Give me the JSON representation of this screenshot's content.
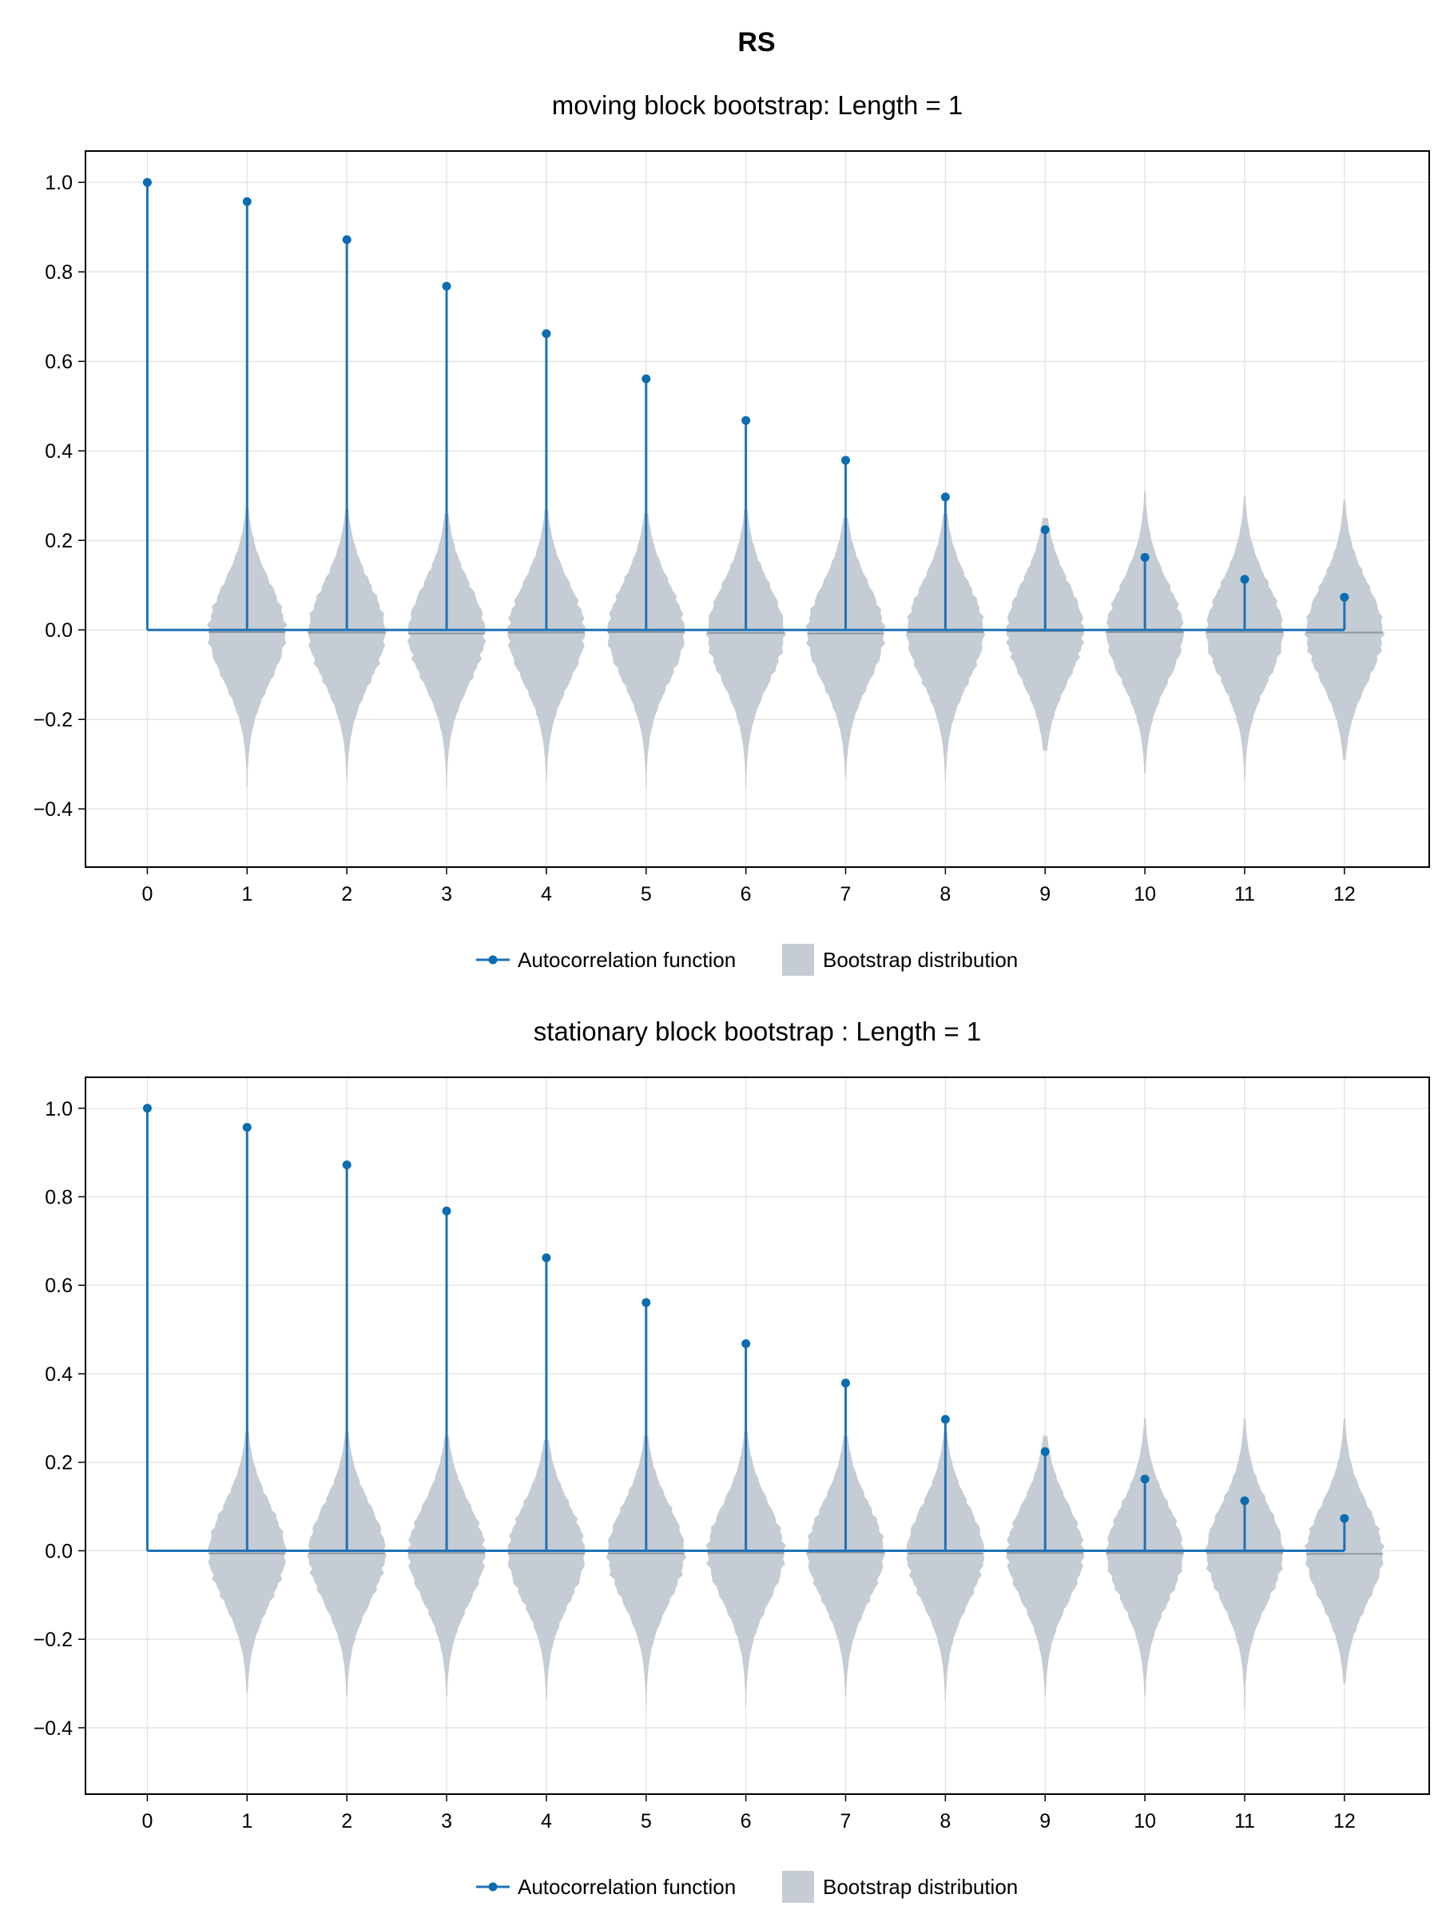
{
  "figure": {
    "title": "RS",
    "colors": {
      "acf": "#0a6cb1",
      "bootstrap": "#c5ccd3"
    },
    "legend": {
      "acf_label": "Autocorrelation function",
      "boot_label": "Bootstrap distribution",
      "placement": "bottom-center"
    }
  },
  "chart_data": [
    {
      "type": "line",
      "title": "moving block bootstrap: Length = 1",
      "xlabel": "",
      "ylabel": "",
      "x": [
        0,
        1,
        2,
        3,
        4,
        5,
        6,
        7,
        8,
        9,
        10,
        11,
        12
      ],
      "xticks": [
        0,
        1,
        2,
        3,
        4,
        5,
        6,
        7,
        8,
        9,
        10,
        11,
        12
      ],
      "yticks": [
        "-0.4",
        "-0.2",
        "0.0",
        "0.2",
        "0.4",
        "0.6",
        "0.8",
        "1.0"
      ],
      "xlim": [
        -0.62,
        12.85
      ],
      "ylim": [
        -0.53,
        1.07
      ],
      "grid": true,
      "series": [
        {
          "name": "Autocorrelation function",
          "style": "stem",
          "values": [
            1.0,
            0.957,
            0.872,
            0.768,
            0.662,
            0.561,
            0.468,
            0.379,
            0.297,
            0.224,
            0.162,
            0.113,
            0.073
          ]
        },
        {
          "name": "Bootstrap distribution",
          "style": "violin",
          "lags": [
            1,
            2,
            3,
            4,
            5,
            6,
            7,
            8,
            9,
            10,
            11,
            12
          ],
          "min": [
            -0.35,
            -0.34,
            -0.35,
            -0.34,
            -0.35,
            -0.35,
            -0.33,
            -0.34,
            -0.27,
            -0.32,
            -0.34,
            -0.29
          ],
          "max": [
            0.27,
            0.27,
            0.26,
            0.27,
            0.26,
            0.27,
            0.25,
            0.26,
            0.25,
            0.31,
            0.3,
            0.29
          ],
          "median": [
            -0.005,
            -0.006,
            -0.008,
            -0.006,
            -0.005,
            -0.007,
            -0.008,
            -0.005,
            -0.003,
            -0.005,
            -0.005,
            -0.006
          ]
        }
      ]
    },
    {
      "type": "line",
      "title": "stationary block bootstrap : Length = 1",
      "xlabel": "",
      "ylabel": "",
      "x": [
        0,
        1,
        2,
        3,
        4,
        5,
        6,
        7,
        8,
        9,
        10,
        11,
        12
      ],
      "xticks": [
        0,
        1,
        2,
        3,
        4,
        5,
        6,
        7,
        8,
        9,
        10,
        11,
        12
      ],
      "yticks": [
        "-0.4",
        "-0.2",
        "0.0",
        "0.2",
        "0.4",
        "0.6",
        "0.8",
        "1.0"
      ],
      "xlim": [
        -0.62,
        12.85
      ],
      "ylim": [
        -0.55,
        1.07
      ],
      "grid": true,
      "series": [
        {
          "name": "Autocorrelation function",
          "style": "stem",
          "values": [
            1.0,
            0.957,
            0.872,
            0.768,
            0.662,
            0.561,
            0.468,
            0.379,
            0.297,
            0.224,
            0.162,
            0.113,
            0.073
          ]
        },
        {
          "name": "Bootstrap distribution",
          "style": "violin",
          "lags": [
            1,
            2,
            3,
            4,
            5,
            6,
            7,
            8,
            9,
            10,
            11,
            12
          ],
          "min": [
            -0.32,
            -0.33,
            -0.33,
            -0.34,
            -0.35,
            -0.35,
            -0.33,
            -0.34,
            -0.33,
            -0.33,
            -0.36,
            -0.3
          ],
          "max": [
            0.27,
            0.27,
            0.26,
            0.25,
            0.26,
            0.27,
            0.26,
            0.27,
            0.26,
            0.3,
            0.3,
            0.3
          ],
          "median": [
            -0.006,
            -0.006,
            -0.005,
            -0.006,
            -0.006,
            -0.005,
            -0.004,
            -0.006,
            -0.005,
            -0.005,
            -0.005,
            -0.007
          ]
        }
      ]
    }
  ]
}
